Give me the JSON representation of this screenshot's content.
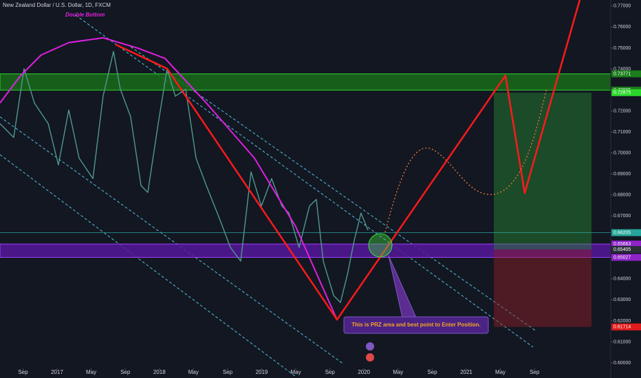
{
  "header": {
    "symbol": "New Zealand Dollar / U.S. Dollar, 1D, FXCM",
    "drawing_title": "Double Bottom",
    "callout": "This is PRZ area and best point to Enter Position."
  },
  "chart_data": {
    "type": "line",
    "color": "#4f9a8f",
    "x": [
      2016.442,
      2016.576,
      2016.677,
      2016.778,
      2016.913,
      2017.013,
      2017.114,
      2017.215,
      2017.35,
      2017.45,
      2017.551,
      2017.618,
      2017.719,
      2017.82,
      2017.887,
      2017.988,
      2018.076,
      2018.156,
      2018.257,
      2018.358,
      2018.459,
      2018.593,
      2018.694,
      2018.795,
      2018.896,
      2018.997,
      2019.097,
      2019.198,
      2019.266,
      2019.366,
      2019.467,
      2019.534,
      2019.602,
      2019.703,
      2019.77,
      2019.837,
      2019.904,
      2019.971,
      2020.039
    ],
    "values": [
      0.714,
      0.7074,
      0.7402,
      0.7238,
      0.714,
      0.6943,
      0.7205,
      0.6976,
      0.6878,
      0.7271,
      0.7484,
      0.7304,
      0.7173,
      0.6845,
      0.6812,
      0.714,
      0.7402,
      0.7271,
      0.7304,
      0.6976,
      0.6845,
      0.6681,
      0.655,
      0.6485,
      0.691,
      0.6747,
      0.6878,
      0.6747,
      0.6714,
      0.655,
      0.6747,
      0.6779,
      0.6485,
      0.6321,
      0.6288,
      0.6419,
      0.6583,
      0.6714,
      0.6632
    ],
    "xlim": [
      2016.442,
      2022.412
    ],
    "ylim": [
      0.5928,
      0.7729
    ],
    "xticks": [
      {
        "value": 2016.667,
        "label": "Sep"
      },
      2017,
      {
        "value": 2017.333,
        "label": "May"
      },
      {
        "value": 2017.667,
        "label": "Sep"
      },
      2018,
      {
        "value": 2018.333,
        "label": "May"
      },
      {
        "value": 2018.667,
        "label": "Sep"
      },
      2019,
      {
        "value": 2019.333,
        "label": "May"
      },
      {
        "value": 2019.667,
        "label": "Sep"
      },
      2020,
      {
        "value": 2020.333,
        "label": "May"
      },
      {
        "value": 2020.667,
        "label": "Sep"
      },
      2021,
      {
        "value": 2021.333,
        "label": "May"
      },
      {
        "value": 2021.667,
        "label": "Sep"
      }
    ],
    "yticks": [
      {
        "value": 0.6,
        "label": "0.60000"
      },
      {
        "value": 0.61,
        "label": "0.61000"
      },
      {
        "value": 0.62,
        "label": "0.62000"
      },
      {
        "value": 0.63,
        "label": "0.63000"
      },
      {
        "value": 0.64,
        "label": "0.64000"
      },
      {
        "value": 0.65,
        "label": "0.65000"
      },
      {
        "value": 0.67,
        "label": "0.67000"
      },
      {
        "value": 0.68,
        "label": "0.68000"
      },
      {
        "value": 0.69,
        "label": "0.69000"
      },
      {
        "value": 0.7,
        "label": "0.70000"
      },
      {
        "value": 0.71,
        "label": "0.71000"
      },
      {
        "value": 0.72,
        "label": "0.72000"
      },
      {
        "value": 0.74,
        "label": "0.74000"
      },
      {
        "value": 0.75,
        "label": "0.75000"
      },
      {
        "value": 0.76,
        "label": "0.76000"
      },
      {
        "value": 0.77,
        "label": "0.77000"
      }
    ],
    "zones": [
      {
        "from": 0.72995,
        "to": 0.73771,
        "color": "#1a6b1a"
      },
      {
        "from": 0.65027,
        "to": 0.65663,
        "color": "#55189a"
      }
    ],
    "level": {
      "value": 0.66205,
      "color": "#26a69a"
    },
    "price_labels": [
      {
        "value": 0.73771,
        "label": "0.73771",
        "color": "#1a7d1a"
      },
      {
        "value": 0.72995,
        "label": "0.72995",
        "color": "#1a7d1a"
      },
      {
        "value": 0.72875,
        "label": "0.72875",
        "color": "#2bd62b"
      },
      {
        "value": 0.66205,
        "label": "0.66205",
        "color": "#26a69a"
      },
      {
        "value": 0.65663,
        "label": "0.65663",
        "color": "#8e24c8"
      },
      {
        "value": 0.65405,
        "label": "0.65405",
        "color": "#2a2e39"
      },
      {
        "value": 0.65027,
        "label": "0.65027",
        "color": "#8e24c8"
      },
      {
        "value": 0.61714,
        "label": "0.61714",
        "color": "#e01b1b"
      }
    ],
    "position": {
      "t": [
        2021.269,
        2022.224
      ],
      "entry": 0.65405,
      "target": 0.72875,
      "stop": 0.61714
    },
    "zigzag": {
      "color": "#ff1a1a",
      "x": [
        2017.571,
        2018.076,
        2019.736,
        2021.383,
        2021.571,
        2022.109
      ],
      "values": [
        0.7517,
        0.7402,
        0.6206,
        0.7369,
        0.6809,
        0.7729
      ]
    },
    "arc": {
      "color": "#e020e0",
      "x": [
        2016.442,
        2016.644,
        2016.845,
        2017.114,
        2017.45,
        2017.787,
        2018.055,
        2018.459,
        2018.929,
        2019.333,
        2019.736
      ],
      "values": [
        0.7238,
        0.7369,
        0.7467,
        0.7526,
        0.7549,
        0.75,
        0.7451,
        0.7238,
        0.6976,
        0.6649,
        0.6206
      ]
    }
  }
}
